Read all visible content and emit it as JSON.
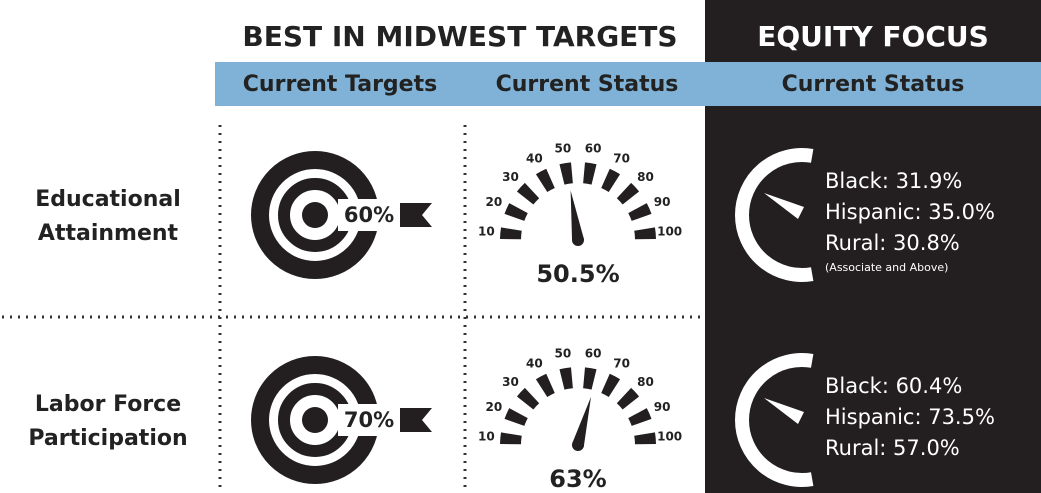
{
  "header": {
    "left_title": "BEST IN MIDWEST TARGETS",
    "right_title": "EQUITY FOCUS"
  },
  "columns": [
    "Current Targets",
    "Current Status",
    "Current Status"
  ],
  "gauge_ticks": [
    10,
    20,
    30,
    40,
    50,
    60,
    70,
    80,
    90,
    100
  ],
  "rows": [
    {
      "label": [
        "Educational",
        "Attainment"
      ],
      "target": "60%",
      "status": {
        "value": 50.5,
        "label": "50.5%"
      },
      "equity": [
        "Black: 31.9%",
        "Hispanic: 35.0%",
        "Rural: 30.8%"
      ],
      "note": "(Associate and Above)"
    },
    {
      "label": [
        "Labor Force",
        "Participation"
      ],
      "target": "70%",
      "status": {
        "value": 63,
        "label": "63%"
      },
      "equity": [
        "Black:  60.4%",
        "Hispanic:  73.5%",
        "Rural:  57.0%"
      ]
    }
  ]
}
